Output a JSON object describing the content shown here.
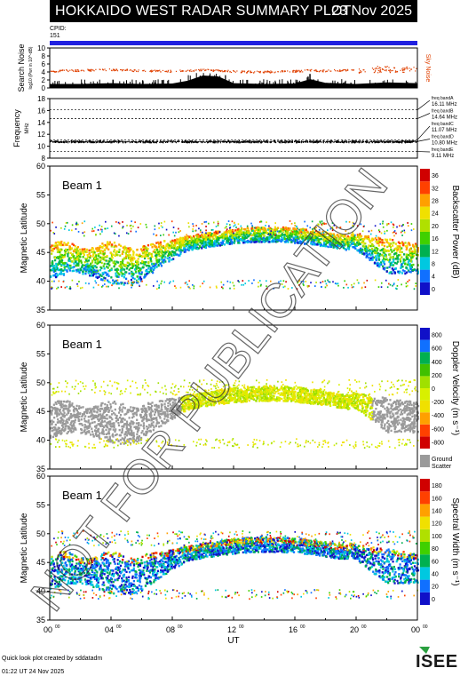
{
  "header": {
    "title": "HOKKAIDO WEST RADAR SUMMARY PLOT",
    "date": "23 Nov 2025"
  },
  "cpid": {
    "label": "CPID:",
    "value": "151"
  },
  "footer": {
    "line1": "Quick look plot created by sddatadm",
    "line2": "01:22 UT 24 Nov 2025"
  },
  "watermark": "NOT FOR PUBLICATION",
  "logo_text": "ISEE",
  "colors": {
    "cpid_bar": "#2020e0",
    "noise_dots": "#e04000",
    "ground_scatter": "#9a9a9a"
  },
  "chart_data": [
    {
      "type": "area",
      "panel": "search-noise",
      "ylabel": "Search Noise",
      "ylabel_unit": "log10 (Pwr in 10^-dB)",
      "ylim": [
        0,
        10
      ],
      "yticks": [
        "0",
        "2",
        "4",
        "6",
        "8",
        "10"
      ],
      "legend": "Sky Noise",
      "x": [
        0,
        2,
        4,
        6,
        8,
        9,
        10,
        11,
        12,
        14,
        16,
        17,
        18,
        20,
        22,
        24
      ],
      "series": [
        {
          "name": "Sky Noise",
          "values": [
            4.3,
            4.5,
            4.7,
            4.4,
            4.3,
            4.4,
            4.6,
            4.5,
            4.2,
            4.1,
            4.3,
            4.5,
            4.4,
            4.6,
            4.8,
            4.5
          ]
        },
        {
          "values": [
            1.0,
            1.0,
            1.2,
            1.0,
            1.1,
            1.8,
            3.1,
            2.9,
            1.2,
            1.0,
            1.1,
            2.2,
            1.3,
            1.0,
            1.4,
            1.2
          ]
        }
      ]
    },
    {
      "type": "line",
      "panel": "frequency",
      "ylabel": "Frequency",
      "ylabel_unit": "MHz",
      "ylim": [
        8,
        18
      ],
      "yticks": [
        "8",
        "10",
        "12",
        "14",
        "16",
        "18"
      ],
      "bands": [
        {
          "name": "freq bandA",
          "value": "16.11 MHz",
          "freq": 16.11
        },
        {
          "name": "freq bandB",
          "value": "14.64 MHz",
          "freq": 14.64
        },
        {
          "name": "freq bandC",
          "value": "11.07 MHz",
          "freq": 11.07
        },
        {
          "name": "freq bandD",
          "value": "10.80 MHz",
          "freq": 10.8
        },
        {
          "name": "freq bandE",
          "value": "9.11 MHz",
          "freq": 9.11
        }
      ],
      "operating_frequency": 10.85
    },
    {
      "type": "heatmap",
      "panel": "backscatter-power",
      "label": "Beam  1",
      "ylabel": "Magnetic Latitude",
      "ylim": [
        35,
        60
      ],
      "yticks": [
        "35",
        "40",
        "45",
        "50",
        "55",
        "60"
      ],
      "colorbar_label": "Backscatter Power (dB)",
      "colorbar_ticks": [
        "0",
        "4",
        "8",
        "12",
        "16",
        "20",
        "24",
        "28",
        "32",
        "36"
      ],
      "colors": [
        "#1010c8",
        "#1070ff",
        "#00c8e0",
        "#00b050",
        "#40d000",
        "#b0e000",
        "#f0e000",
        "#ffa000",
        "#ff4000",
        "#d00000"
      ]
    },
    {
      "type": "heatmap",
      "panel": "doppler-velocity",
      "label": "Beam  1",
      "ylabel": "Magnetic Latitude",
      "ylim": [
        35,
        60
      ],
      "yticks": [
        "35",
        "40",
        "45",
        "50",
        "55",
        "60"
      ],
      "colorbar_label": "Doppler Velocity (m s⁻¹)",
      "colorbar_ticks": [
        "-800",
        "-600",
        "-400",
        "-200",
        "0",
        "200",
        "400",
        "600",
        "800"
      ],
      "colors": [
        "#d00000",
        "#ff4000",
        "#ffa000",
        "#f0e000",
        "#d8f000",
        "#a0e000",
        "#40c000",
        "#00b050",
        "#1070ff",
        "#1010c8"
      ],
      "ground_scatter_label": "Ground Scatter"
    },
    {
      "type": "heatmap",
      "panel": "spectral-width",
      "label": "Beam  1",
      "ylabel": "Magnetic Latitude",
      "ylim": [
        35,
        60
      ],
      "yticks": [
        "35",
        "40",
        "45",
        "50",
        "55",
        "60"
      ],
      "colorbar_label": "Spectral Width (m s⁻¹)",
      "colorbar_ticks": [
        "0",
        "20",
        "40",
        "60",
        "80",
        "100",
        "120",
        "140",
        "160",
        "180"
      ],
      "colors": [
        "#1010c8",
        "#1070ff",
        "#00c8e0",
        "#00b050",
        "#40d000",
        "#b0e000",
        "#f0e000",
        "#ffa000",
        "#ff4000",
        "#d00000"
      ],
      "xlabel": "UT",
      "xticks": [
        "00",
        "04",
        "08",
        "12",
        "16",
        "20",
        "00"
      ],
      "xtick_sup": "00",
      "xlim_hours": [
        0,
        24
      ]
    }
  ]
}
